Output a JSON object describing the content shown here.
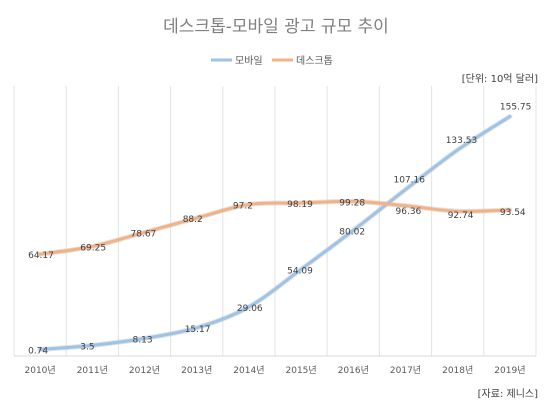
{
  "chart_data": {
    "type": "line",
    "title": "데스크톱-모바일 광고 규모 추이",
    "unit_label": "[단위: 10억 달러]",
    "source_label": "[자료: 제니스]",
    "categories": [
      "2010년",
      "2011년",
      "2012년",
      "2013년",
      "2014년",
      "2015년",
      "2016년",
      "2017년",
      "2018년",
      "2019년"
    ],
    "series": [
      {
        "name": "모바일",
        "color": "#9dc3e6",
        "values": [
          0.74,
          3.5,
          8.13,
          15.17,
          29.06,
          54.09,
          80.02,
          107.16,
          133.53,
          155.75
        ],
        "labels": [
          "0.74",
          "3.5",
          "8.13",
          "15.17",
          "29.06",
          "54.09",
          "80.02",
          "107.16",
          "133.53",
          "155.75"
        ]
      },
      {
        "name": "데스크톱",
        "color": "#f4b183",
        "values": [
          64.17,
          69.25,
          78.67,
          88.2,
          97.2,
          98.19,
          99.28,
          96.36,
          92.74,
          93.54
        ],
        "labels": [
          "64.17",
          "69.25",
          "78.67",
          "88.2",
          "97.2",
          "98.19",
          "99.28",
          "96.36",
          "92.74",
          "93.54"
        ]
      }
    ],
    "legend_position": "top",
    "grid": "vertical"
  }
}
